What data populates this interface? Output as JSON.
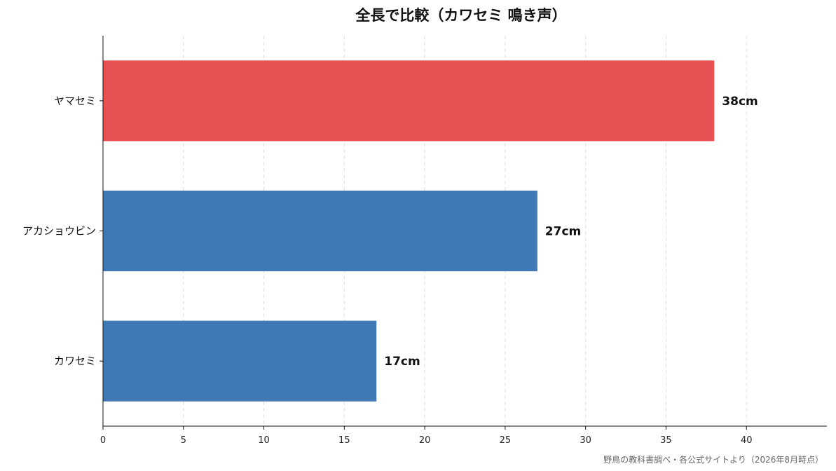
{
  "chart_data": {
    "type": "bar",
    "orientation": "horizontal",
    "title": "全長で比較（カワセミ 鳴き声）",
    "categories": [
      "ヤマセミ",
      "アカショウビン",
      "カワセミ"
    ],
    "values": [
      38,
      27,
      17
    ],
    "value_labels": [
      "38cm",
      "27cm",
      "17cm"
    ],
    "bar_colors": [
      "#e85252",
      "#3f7ab6",
      "#3f7ab6"
    ],
    "xlim": [
      0,
      45
    ],
    "xticks": [
      0,
      5,
      10,
      15,
      20,
      25,
      30,
      35,
      40
    ],
    "xlabel": "",
    "ylabel": "",
    "grid": "vertical-dashed",
    "legend": "none"
  },
  "footnote": "野鳥の教科書調べ・各公式サイトより（2026年8月時点）"
}
